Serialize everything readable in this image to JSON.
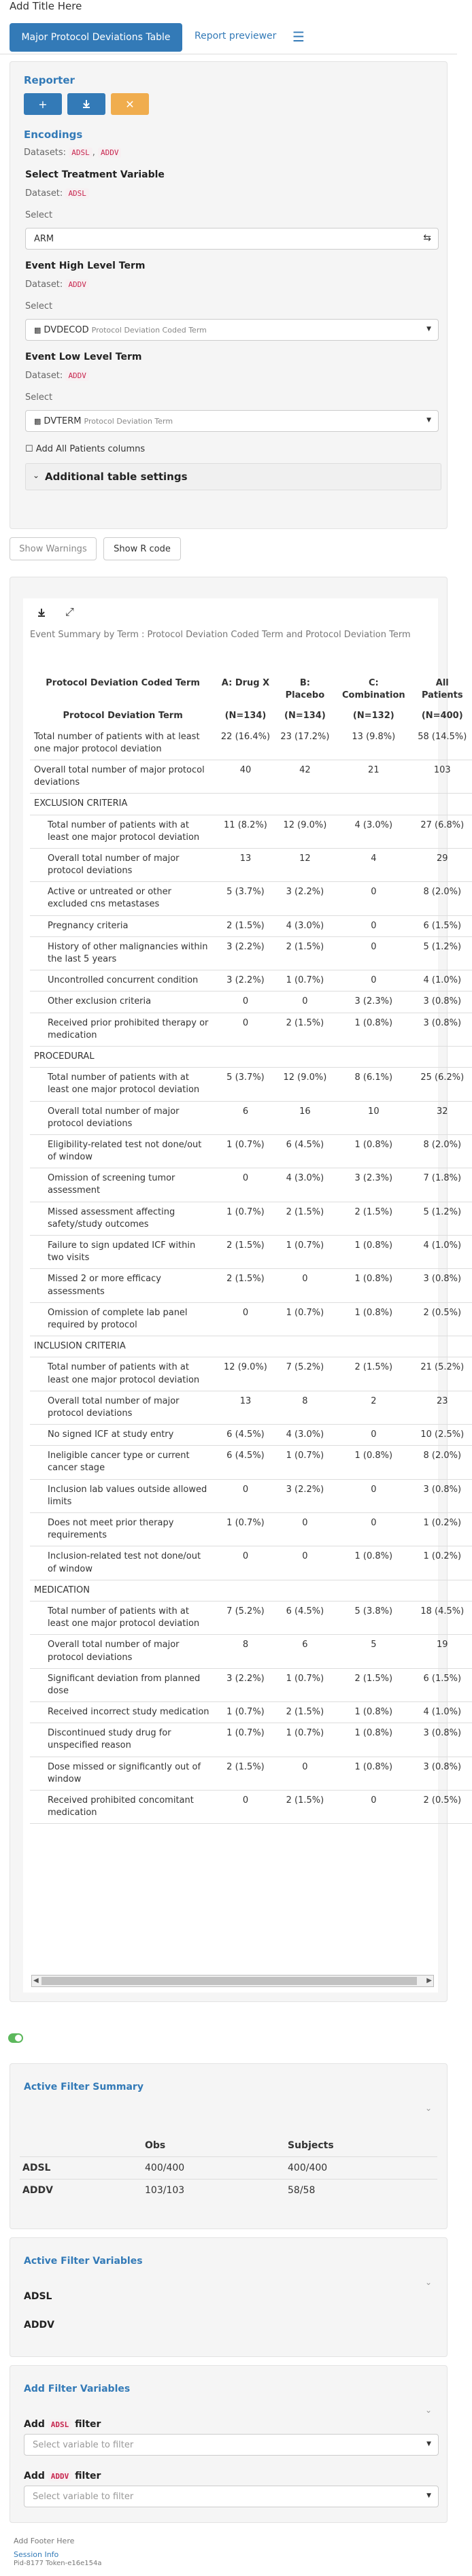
{
  "app": {
    "title": "Add Title Here",
    "footer": "Add Footer Here",
    "session_info_label": "Session Info",
    "session_info_text": "Pid-8177 Token-e16e154a"
  },
  "nav": {
    "tab_active": "Major Protocol Deviations Table",
    "tab_link": "Report previewer"
  },
  "reporter": {
    "title": "Reporter",
    "encodings_title": "Encodings",
    "datasets_label": "Datasets:",
    "datasets": [
      "ADSL",
      "ADDV"
    ],
    "treatment": {
      "title": "Select Treatment Variable",
      "dataset_label": "Dataset:",
      "dataset": "ADSL",
      "select_label": "Select",
      "value": "ARM"
    },
    "hlt": {
      "title": "Event High Level Term",
      "dataset_label": "Dataset:",
      "dataset": "ADDV",
      "select_label": "Select",
      "value_code": "DVDECOD",
      "value_desc": "Protocol Deviation Coded Term"
    },
    "llt": {
      "title": "Event Low Level Term",
      "dataset_label": "Dataset:",
      "dataset": "ADDV",
      "select_label": "Select",
      "value_code": "DVTERM",
      "value_desc": "Protocol Deviation Term"
    },
    "add_all_patients": "Add All Patients columns",
    "additional_settings": "Additional table settings",
    "show_warnings": "Show Warnings",
    "show_r_code": "Show R code"
  },
  "table": {
    "caption": "Event Summary by Term : Protocol Deviation Coded Term and Protocol Deviation Term",
    "header": {
      "col_label_1": "Protocol Deviation Coded Term",
      "col_label_2": "Protocol Deviation Term",
      "arms": [
        "A: Drug X",
        "B: Placebo",
        "C: Combination",
        "All Patients"
      ],
      "ns": [
        "(N=134)",
        "(N=134)",
        "(N=132)",
        "(N=400)"
      ]
    },
    "rows": [
      {
        "label": "Total number of patients with at least one major protocol deviation",
        "vals": [
          "22 (16.4%)",
          "23 (17.2%)",
          "13 (9.8%)",
          "58 (14.5%)"
        ],
        "indent": 0,
        "type": "data"
      },
      {
        "label": "Overall total number of major protocol deviations",
        "vals": [
          "40",
          "42",
          "21",
          "103"
        ],
        "indent": 0,
        "type": "data"
      },
      {
        "label": "EXCLUSION CRITERIA",
        "vals": [],
        "indent": 0,
        "type": "group"
      },
      {
        "label": "Total number of patients with at least one major protocol deviation",
        "vals": [
          "11 (8.2%)",
          "12 (9.0%)",
          "4 (3.0%)",
          "27 (6.8%)"
        ],
        "indent": 1,
        "type": "data"
      },
      {
        "label": "Overall total number of major protocol deviations",
        "vals": [
          "13",
          "12",
          "4",
          "29"
        ],
        "indent": 1,
        "type": "data"
      },
      {
        "label": "Active or untreated or other excluded cns metastases",
        "vals": [
          "5 (3.7%)",
          "3 (2.2%)",
          "0",
          "8 (2.0%)"
        ],
        "indent": 1,
        "type": "data"
      },
      {
        "label": "Pregnancy criteria",
        "vals": [
          "2 (1.5%)",
          "4 (3.0%)",
          "0",
          "6 (1.5%)"
        ],
        "indent": 1,
        "type": "data"
      },
      {
        "label": "History of other malignancies within the last 5 years",
        "vals": [
          "3 (2.2%)",
          "2 (1.5%)",
          "0",
          "5 (1.2%)"
        ],
        "indent": 1,
        "type": "data"
      },
      {
        "label": "Uncontrolled concurrent condition",
        "vals": [
          "3 (2.2%)",
          "1 (0.7%)",
          "0",
          "4 (1.0%)"
        ],
        "indent": 1,
        "type": "data"
      },
      {
        "label": "Other exclusion criteria",
        "vals": [
          "0",
          "0",
          "3 (2.3%)",
          "3 (0.8%)"
        ],
        "indent": 1,
        "type": "data"
      },
      {
        "label": "Received prior prohibited therapy or medication",
        "vals": [
          "0",
          "2 (1.5%)",
          "1 (0.8%)",
          "3 (0.8%)"
        ],
        "indent": 1,
        "type": "data"
      },
      {
        "label": "PROCEDURAL",
        "vals": [],
        "indent": 0,
        "type": "group"
      },
      {
        "label": "Total number of patients with at least one major protocol deviation",
        "vals": [
          "5 (3.7%)",
          "12 (9.0%)",
          "8 (6.1%)",
          "25 (6.2%)"
        ],
        "indent": 1,
        "type": "data"
      },
      {
        "label": "Overall total number of major protocol deviations",
        "vals": [
          "6",
          "16",
          "10",
          "32"
        ],
        "indent": 1,
        "type": "data"
      },
      {
        "label": "Eligibility-related test not done/out of window",
        "vals": [
          "1 (0.7%)",
          "6 (4.5%)",
          "1 (0.8%)",
          "8 (2.0%)"
        ],
        "indent": 1,
        "type": "data"
      },
      {
        "label": "Omission of screening tumor assessment",
        "vals": [
          "0",
          "4 (3.0%)",
          "3 (2.3%)",
          "7 (1.8%)"
        ],
        "indent": 1,
        "type": "data"
      },
      {
        "label": "Missed assessment affecting safety/study outcomes",
        "vals": [
          "1 (0.7%)",
          "2 (1.5%)",
          "2 (1.5%)",
          "5 (1.2%)"
        ],
        "indent": 1,
        "type": "data"
      },
      {
        "label": "Failure to sign updated ICF within two visits",
        "vals": [
          "2 (1.5%)",
          "1 (0.7%)",
          "1 (0.8%)",
          "4 (1.0%)"
        ],
        "indent": 1,
        "type": "data"
      },
      {
        "label": "Missed 2 or more efficacy assessments",
        "vals": [
          "2 (1.5%)",
          "0",
          "1 (0.8%)",
          "3 (0.8%)"
        ],
        "indent": 1,
        "type": "data"
      },
      {
        "label": "Omission of complete lab panel required by protocol",
        "vals": [
          "0",
          "1 (0.7%)",
          "1 (0.8%)",
          "2 (0.5%)"
        ],
        "indent": 1,
        "type": "data"
      },
      {
        "label": "INCLUSION CRITERIA",
        "vals": [],
        "indent": 0,
        "type": "group"
      },
      {
        "label": "Total number of patients with at least one major protocol deviation",
        "vals": [
          "12 (9.0%)",
          "7 (5.2%)",
          "2 (1.5%)",
          "21 (5.2%)"
        ],
        "indent": 1,
        "type": "data"
      },
      {
        "label": "Overall total number of major protocol deviations",
        "vals": [
          "13",
          "8",
          "2",
          "23"
        ],
        "indent": 1,
        "type": "data"
      },
      {
        "label": "No signed ICF at study entry",
        "vals": [
          "6 (4.5%)",
          "4 (3.0%)",
          "0",
          "10 (2.5%)"
        ],
        "indent": 1,
        "type": "data"
      },
      {
        "label": "Ineligible cancer type or current cancer stage",
        "vals": [
          "6 (4.5%)",
          "1 (0.7%)",
          "1 (0.8%)",
          "8 (2.0%)"
        ],
        "indent": 1,
        "type": "data"
      },
      {
        "label": "Inclusion lab values outside allowed limits",
        "vals": [
          "0",
          "3 (2.2%)",
          "0",
          "3 (0.8%)"
        ],
        "indent": 1,
        "type": "data"
      },
      {
        "label": "Does not meet prior therapy requirements",
        "vals": [
          "1 (0.7%)",
          "0",
          "0",
          "1 (0.2%)"
        ],
        "indent": 1,
        "type": "data"
      },
      {
        "label": "Inclusion-related test not done/out of window",
        "vals": [
          "0",
          "0",
          "1 (0.8%)",
          "1 (0.2%)"
        ],
        "indent": 1,
        "type": "data"
      },
      {
        "label": "MEDICATION",
        "vals": [],
        "indent": 0,
        "type": "group"
      },
      {
        "label": "Total number of patients with at least one major protocol deviation",
        "vals": [
          "7 (5.2%)",
          "6 (4.5%)",
          "5 (3.8%)",
          "18 (4.5%)"
        ],
        "indent": 1,
        "type": "data"
      },
      {
        "label": "Overall total number of major protocol deviations",
        "vals": [
          "8",
          "6",
          "5",
          "19"
        ],
        "indent": 1,
        "type": "data"
      },
      {
        "label": "Significant deviation from planned dose",
        "vals": [
          "3 (2.2%)",
          "1 (0.7%)",
          "2 (1.5%)",
          "6 (1.5%)"
        ],
        "indent": 1,
        "type": "data"
      },
      {
        "label": "Received incorrect study medication",
        "vals": [
          "1 (0.7%)",
          "2 (1.5%)",
          "1 (0.8%)",
          "4 (1.0%)"
        ],
        "indent": 1,
        "type": "data"
      },
      {
        "label": "Discontinued study drug for unspecified reason",
        "vals": [
          "1 (0.7%)",
          "1 (0.7%)",
          "1 (0.8%)",
          "3 (0.8%)"
        ],
        "indent": 1,
        "type": "data"
      },
      {
        "label": "Dose missed or significantly out of window",
        "vals": [
          "2 (1.5%)",
          "0",
          "1 (0.8%)",
          "3 (0.8%)"
        ],
        "indent": 1,
        "type": "data"
      },
      {
        "label": "Received prohibited concomitant medication",
        "vals": [
          "0",
          "2 (1.5%)",
          "0",
          "2 (0.5%)"
        ],
        "indent": 1,
        "type": "data"
      }
    ]
  },
  "filter_summary": {
    "title": "Active Filter Summary",
    "col_obs": "Obs",
    "col_subjects": "Subjects",
    "rows": [
      {
        "name": "ADSL",
        "obs": "400/400",
        "subjects": "400/400"
      },
      {
        "name": "ADDV",
        "obs": "103/103",
        "subjects": "58/58"
      }
    ]
  },
  "filter_vars": {
    "title": "Active Filter Variables",
    "items": [
      "ADSL",
      "ADDV"
    ]
  },
  "add_filter": {
    "title": "Add Filter Variables",
    "add_label": "Add",
    "filter_label": "filter",
    "datasets": [
      "ADSL",
      "ADDV"
    ],
    "placeholder": "Select variable to filter"
  },
  "colors": {
    "primary": "#337ab7",
    "warning": "#f0ad4e",
    "success": "#5cb85c"
  }
}
